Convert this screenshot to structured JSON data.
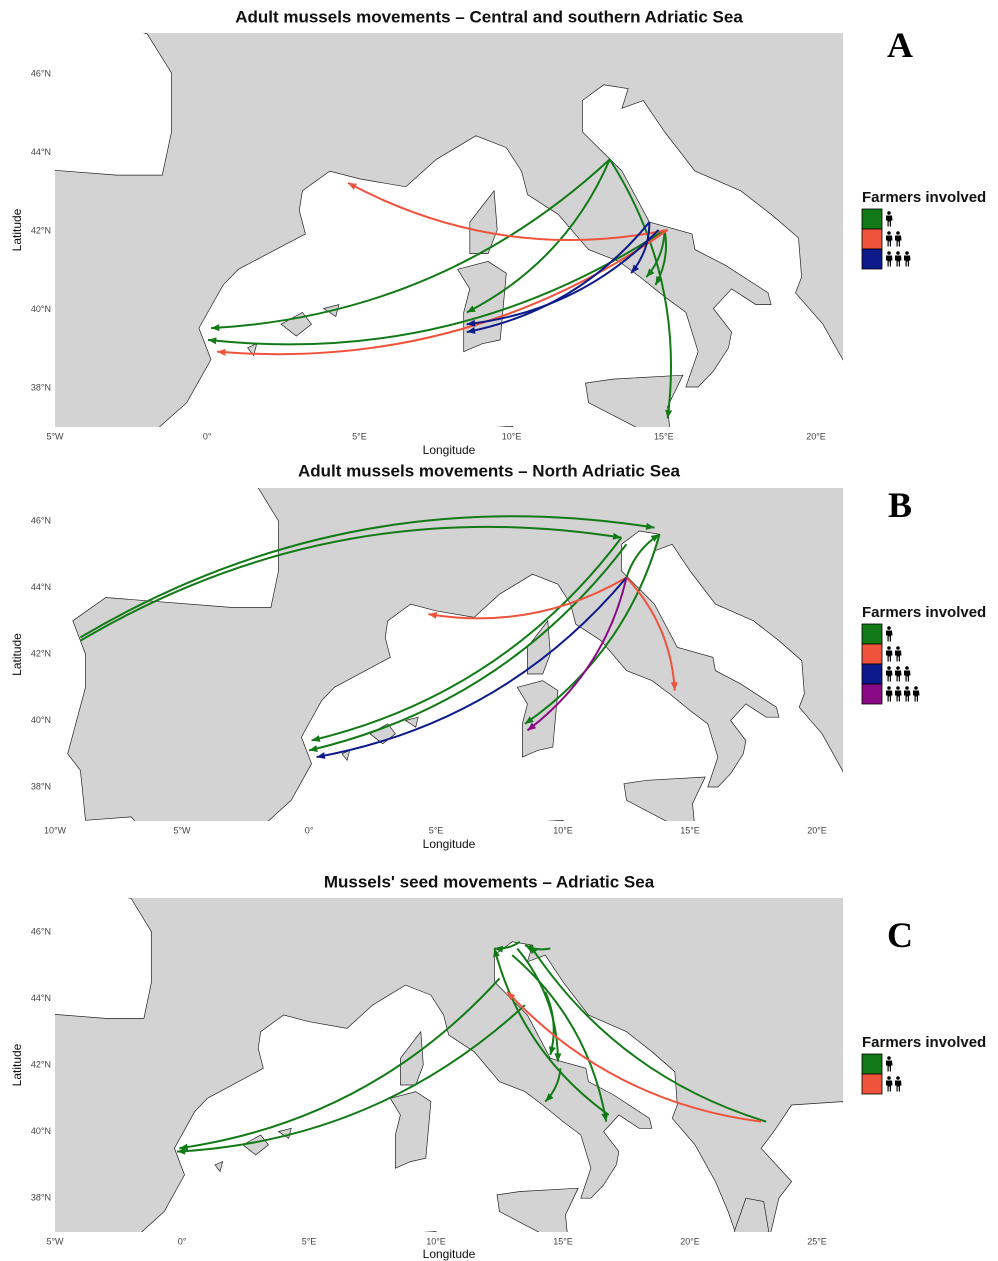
{
  "panels": [
    {
      "letter": "A",
      "title": "Adult mussels movements – Central and southern Adriatic Sea",
      "x_axis": {
        "label": "Longitude",
        "ticks": [
          "5°W",
          "0°",
          "5°E",
          "10°E",
          "15°E",
          "20°E"
        ]
      },
      "y_axis": {
        "label": "Latitude",
        "ticks": [
          "46°N",
          "44°N",
          "42°N",
          "40°N",
          "38°N"
        ]
      },
      "legend": {
        "title": "Farmers involved",
        "items": [
          {
            "color": "#127a16"
          },
          {
            "color": "#f0533c"
          },
          {
            "color": "#0d1a8a"
          }
        ]
      }
    },
    {
      "letter": "B",
      "title": "Adult mussels movements – North Adriatic Sea",
      "x_axis": {
        "label": "Longitude",
        "ticks": [
          "10°W",
          "5°W",
          "0°",
          "5°E",
          "10°E",
          "15°E",
          "20°E"
        ]
      },
      "y_axis": {
        "label": "Latitude",
        "ticks": [
          "46°N",
          "44°N",
          "42°N",
          "40°N",
          "38°N"
        ]
      },
      "legend": {
        "title": "Farmers involved",
        "items": [
          {
            "color": "#127a16"
          },
          {
            "color": "#f0533c"
          },
          {
            "color": "#0d1a8a"
          },
          {
            "color": "#8a0a86"
          }
        ]
      }
    },
    {
      "letter": "C",
      "title": "Mussels' seed movements – Adriatic Sea",
      "x_axis": {
        "label": "Longitude",
        "ticks": [
          "5°W",
          "0°",
          "5°E",
          "10°E",
          "15°E",
          "20°E",
          "25°E"
        ]
      },
      "y_axis": {
        "label": "Latitude",
        "ticks": [
          "46°N",
          "44°N",
          "42°N",
          "40°N",
          "38°N"
        ]
      },
      "legend": {
        "title": "Farmers involved",
        "items": [
          {
            "color": "#127a16"
          },
          {
            "color": "#f0533c"
          }
        ]
      }
    }
  ]
}
